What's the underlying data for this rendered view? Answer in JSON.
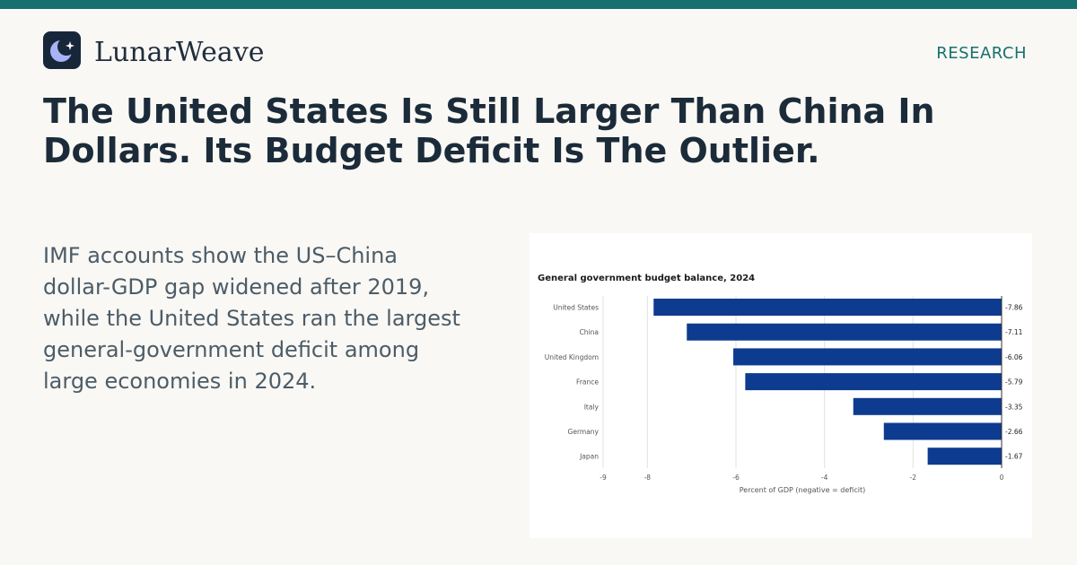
{
  "brand": {
    "name": "LunarWeave",
    "logo_icon": "crescent-moon-sparkle-icon"
  },
  "section_tag": "RESEARCH",
  "headline": "The United States Is Still Larger Than China In Dollars. Its Budget Deficit Is The Outlier.",
  "summary": "IMF accounts show the US–China dollar-GDP gap widened after 2019, while the United States ran the largest general-government deficit among large economies in 2024.",
  "colors": {
    "accent": "#16706f",
    "bar": "#0d3b8f",
    "headline": "#1b2b39",
    "body": "#4c5c68"
  },
  "chart_data": {
    "type": "bar",
    "orientation": "horizontal",
    "title": "General government budget balance, 2024",
    "xlabel": "Percent of GDP (negative = deficit)",
    "ylabel": "",
    "categories": [
      "United States",
      "China",
      "United Kingdom",
      "France",
      "Italy",
      "Germany",
      "Japan"
    ],
    "values": [
      -7.86,
      -7.11,
      -6.06,
      -5.79,
      -3.35,
      -2.66,
      -1.67
    ],
    "data_labels": [
      "-7.86",
      "-7.11",
      "-6.06",
      "-5.79",
      "-3.35",
      "-2.66",
      "-1.67"
    ],
    "xlim": [
      -9,
      0
    ],
    "xticks": [
      -9,
      -8,
      -6,
      -4,
      -2,
      0
    ],
    "xtick_labels": [
      "-9",
      "-8",
      "-6",
      "-4",
      "-2",
      "0"
    ],
    "grid": true,
    "legend": "none"
  }
}
